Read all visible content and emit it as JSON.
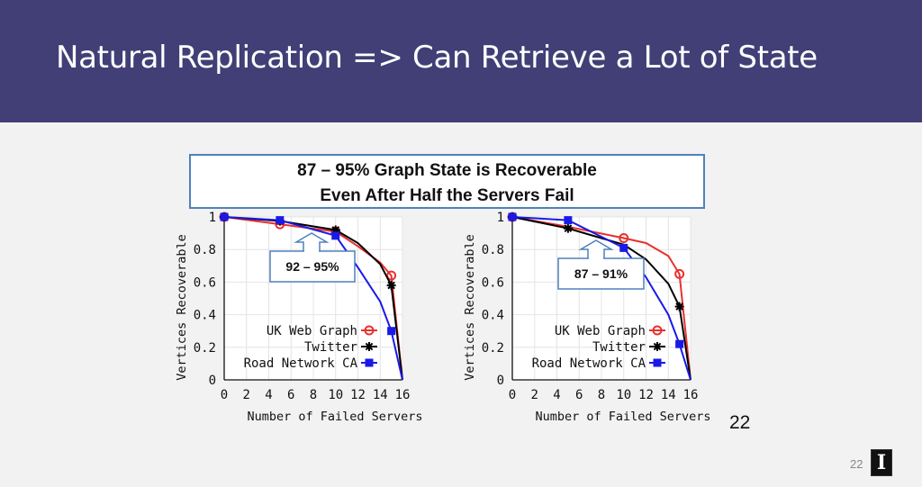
{
  "slide": {
    "title": "Natural Replication => Can Retrieve a Lot of State",
    "callout_line1": "87 – 95% Graph State is Recoverable",
    "callout_line2": "Even After Half the Servers Fail",
    "page_number_big": "22",
    "page_number_small": "22",
    "logo_letter": "I"
  },
  "colors": {
    "header": "#413f76",
    "uk": "#e8312f",
    "twitter": "#000000",
    "road": "#1a1ae6",
    "callout_border": "#4f81bd"
  },
  "chart_data": [
    {
      "type": "line",
      "xlabel": "Number of Failed Servers",
      "ylabel": "Vertices Recoverable",
      "xlim": [
        0,
        16
      ],
      "ylim": [
        0,
        1
      ],
      "xticks": [
        0,
        2,
        4,
        6,
        8,
        10,
        12,
        14,
        16
      ],
      "yticks": [
        0,
        0.2,
        0.4,
        0.6,
        0.8,
        1
      ],
      "ytick_labels": [
        "0",
        "0.2",
        "0.4",
        "0.6",
        "0.8",
        "1"
      ],
      "grid": true,
      "legend": "bottom-left",
      "annotation": "92 – 95%",
      "series": [
        {
          "name": "UK Web Graph",
          "marker": "circle",
          "x": [
            0,
            5,
            10,
            12,
            14,
            15,
            16
          ],
          "y": [
            1,
            0.955,
            0.91,
            0.82,
            0.72,
            0.64,
            0
          ],
          "marker_x": [
            0,
            5,
            10,
            15
          ]
        },
        {
          "name": "Twitter",
          "marker": "asterisk",
          "x": [
            0,
            5,
            10,
            12,
            14,
            15,
            16
          ],
          "y": [
            1,
            0.975,
            0.92,
            0.84,
            0.71,
            0.58,
            0
          ],
          "marker_x": [
            0,
            5,
            10,
            15
          ]
        },
        {
          "name": "Road Network CA",
          "marker": "square",
          "x": [
            0,
            5,
            10,
            12,
            14,
            15,
            16
          ],
          "y": [
            1,
            0.98,
            0.885,
            0.69,
            0.48,
            0.3,
            0
          ],
          "marker_x": [
            0,
            5,
            10,
            15
          ]
        }
      ]
    },
    {
      "type": "line",
      "xlabel": "Number of Failed Servers",
      "ylabel": "Vertices Recoverable",
      "xlim": [
        0,
        16
      ],
      "ylim": [
        0,
        1
      ],
      "xticks": [
        0,
        2,
        4,
        6,
        8,
        10,
        12,
        14,
        16
      ],
      "yticks": [
        0,
        0.2,
        0.4,
        0.6,
        0.8,
        1
      ],
      "ytick_labels": [
        "0",
        "0.2",
        "0.4",
        "0.6",
        "0.8",
        "1"
      ],
      "grid": true,
      "legend": "bottom-left",
      "annotation": "87 – 91%",
      "series": [
        {
          "name": "UK Web Graph",
          "marker": "circle",
          "x": [
            0,
            5,
            10,
            12,
            14,
            15,
            16
          ],
          "y": [
            1,
            0.94,
            0.87,
            0.84,
            0.76,
            0.65,
            0
          ],
          "marker_x": [
            0,
            10,
            15
          ]
        },
        {
          "name": "Twitter",
          "marker": "asterisk",
          "x": [
            0,
            5,
            10,
            12,
            14,
            15,
            16
          ],
          "y": [
            1,
            0.93,
            0.83,
            0.74,
            0.59,
            0.45,
            0
          ],
          "marker_x": [
            0,
            5,
            15
          ]
        },
        {
          "name": "Road Network CA",
          "marker": "square",
          "x": [
            0,
            5,
            10,
            12,
            14,
            15,
            16
          ],
          "y": [
            1,
            0.98,
            0.81,
            0.63,
            0.4,
            0.22,
            0
          ],
          "marker_x": [
            0,
            5,
            10,
            15
          ]
        }
      ]
    }
  ]
}
